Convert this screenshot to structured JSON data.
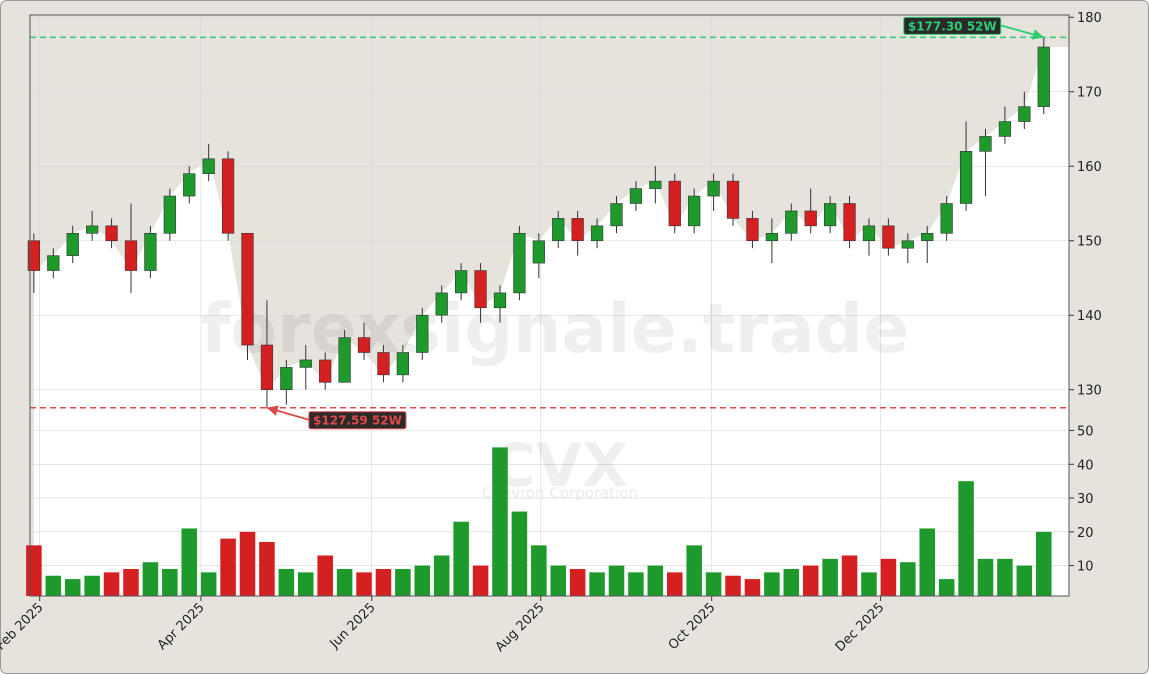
{
  "chart_data": {
    "type": "candlestick",
    "watermark": "forexsignale.trade",
    "symbol": "CVX",
    "company": "Chevron Corporation",
    "up_color": "#1e9a2c",
    "down_color": "#d42020",
    "xlim": [
      -0.2,
      53.3
    ],
    "xticks": [
      {
        "value": 0.3,
        "label": "Feb 2025"
      },
      {
        "value": 8.6,
        "label": "Apr 2025"
      },
      {
        "value": 17.4,
        "label": "Jun 2025"
      },
      {
        "value": 26.1,
        "label": "Aug 2025"
      },
      {
        "value": 34.9,
        "label": "Oct 2025"
      },
      {
        "value": 43.6,
        "label": "Dec 2025"
      }
    ],
    "ylim": [
      125,
      180.3
    ],
    "yticks": [
      130,
      140,
      150,
      160,
      170,
      180
    ],
    "y2lim": [
      1,
      54
    ],
    "y2ticks": [
      10,
      20,
      30,
      40,
      50
    ],
    "grid": true,
    "open": [
      150,
      146,
      148,
      151,
      152,
      150,
      146,
      151,
      156,
      159,
      161,
      151,
      136,
      130,
      133,
      134,
      131,
      137,
      135,
      132,
      135,
      140,
      143,
      146,
      141,
      143,
      147,
      150,
      153,
      150,
      152,
      155,
      157,
      158,
      152,
      156,
      158,
      153,
      150,
      151,
      154,
      152,
      155,
      150,
      152,
      149,
      150,
      151,
      155,
      162,
      164,
      166,
      168
    ],
    "high": [
      151,
      149,
      152,
      154,
      153,
      155,
      152,
      157,
      160,
      163,
      162,
      151,
      142,
      134,
      136,
      135,
      138,
      139,
      136,
      136,
      141,
      144,
      147,
      147,
      144,
      152,
      151,
      154,
      154,
      153,
      156,
      158,
      160,
      159,
      157,
      159,
      159,
      154,
      153,
      155,
      157,
      156,
      156,
      153,
      153,
      151,
      152,
      156,
      166,
      165,
      168,
      170,
      177.3
    ],
    "low": [
      143,
      145,
      147,
      150,
      149,
      143,
      145,
      150,
      155,
      158,
      150,
      134,
      127.59,
      128,
      130,
      130,
      131,
      134,
      131,
      131,
      134,
      139,
      142,
      139,
      139,
      142,
      145,
      149,
      148,
      149,
      151,
      154,
      155,
      151,
      151,
      154,
      152,
      149,
      147,
      150,
      151,
      151,
      149,
      148,
      148,
      147,
      147,
      150,
      154,
      156,
      163,
      165,
      167
    ],
    "close": [
      146,
      148,
      151,
      152,
      150,
      146,
      151,
      156,
      159,
      161,
      151,
      136,
      130,
      133,
      134,
      131,
      137,
      135,
      132,
      135,
      140,
      143,
      146,
      141,
      143,
      151,
      150,
      153,
      150,
      152,
      155,
      157,
      158,
      152,
      156,
      158,
      153,
      150,
      151,
      154,
      152,
      155,
      150,
      152,
      149,
      150,
      151,
      155,
      162,
      164,
      166,
      168,
      176
    ],
    "volume": [
      16,
      7,
      6,
      7,
      8,
      9,
      11,
      9,
      21,
      8,
      18,
      20,
      17,
      9,
      8,
      13,
      9,
      8,
      9,
      9,
      10,
      13,
      23,
      10,
      45,
      26,
      16,
      10,
      9,
      8,
      10,
      8,
      10,
      8,
      16,
      8,
      7,
      6,
      8,
      9,
      10,
      12,
      13,
      8,
      12,
      11,
      21,
      6,
      35,
      12,
      12,
      10,
      20
    ],
    "annotations": [
      {
        "value": 177.3,
        "label": "$177.30 52W",
        "color": "#2ecc71"
      },
      {
        "value": 127.59,
        "label": "$127.59 52W",
        "color": "#e04848"
      }
    ]
  }
}
